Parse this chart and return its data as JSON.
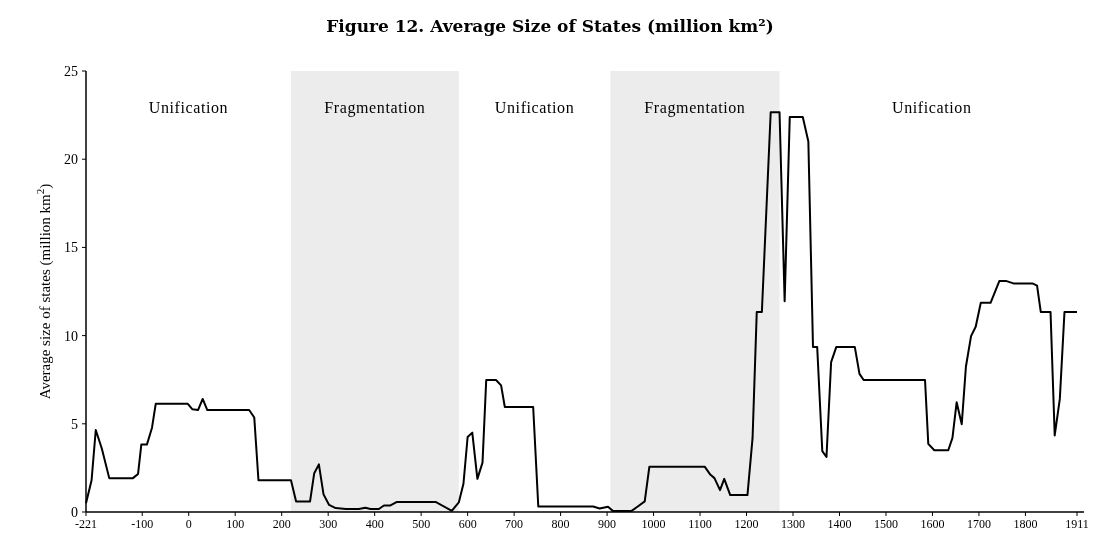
{
  "chart_data": {
    "type": "line",
    "title": "Figure 12. Average Size of States (million km²)",
    "ylabel": "Average size of states (million km$^{2}$)",
    "xlim": [
      -221,
      1926
    ],
    "xticks": [
      -221,
      -100,
      0,
      100,
      200,
      300,
      400,
      500,
      600,
      700,
      800,
      900,
      1000,
      1100,
      1200,
      1300,
      1400,
      1500,
      1600,
      1700,
      1800,
      1911
    ],
    "ylim": [
      0,
      25
    ],
    "yticks": [
      0,
      5,
      10,
      15,
      20,
      25
    ],
    "grid": false,
    "marker": "none",
    "line_style": "solid",
    "bands": [
      {
        "axis": "x",
        "from": 220,
        "to": 581,
        "label": "Fragmentation",
        "color": "#ececec"
      },
      {
        "axis": "x",
        "from": 907,
        "to": 1271,
        "label": "Fragmentation",
        "color": "#ececec"
      }
    ],
    "annotations": [
      "Unification",
      "Unification",
      "Unification"
    ],
    "series": [
      {
        "color": "#000000",
        "x": [
          -221,
          -209,
          -200,
          -187,
          -171,
          -120,
          -109,
          -102,
          -90,
          -79,
          -71,
          -2,
          8,
          20,
          30,
          40,
          130,
          141,
          150,
          220,
          231,
          261,
          270,
          280,
          290,
          302,
          316,
          338,
          366,
          380,
          391,
          409,
          420,
          434,
          448,
          531,
          566,
          581,
          591,
          600,
          610,
          621,
          632,
          640,
          661,
          672,
          680,
          741,
          752,
          870,
          884,
          902,
          913,
          952,
          966,
          981,
          991,
          1110,
          1122,
          1131,
          1143,
          1152,
          1165,
          1202,
          1213,
          1222,
          1233,
          1252,
          1271,
          1282,
          1293,
          1321,
          1333,
          1343,
          1352,
          1363,
          1372,
          1382,
          1393,
          1433,
          1443,
          1452,
          1584,
          1591,
          1604,
          1634,
          1643,
          1652,
          1663,
          1672,
          1683,
          1693,
          1704,
          1725,
          1744,
          1758,
          1774,
          1815,
          1825,
          1833,
          1854,
          1863,
          1874,
          1884,
          1911
        ],
        "values": [
          0.5,
          1.8,
          4.65,
          3.6,
          1.92,
          1.92,
          2.16,
          3.82,
          3.82,
          4.78,
          6.13,
          6.13,
          5.82,
          5.78,
          6.41,
          5.78,
          5.78,
          5.36,
          1.8,
          1.8,
          0.6,
          0.6,
          2.2,
          2.7,
          1.0,
          0.4,
          0.22,
          0.17,
          0.17,
          0.24,
          0.17,
          0.17,
          0.37,
          0.37,
          0.57,
          0.57,
          0.07,
          0.54,
          1.6,
          4.25,
          4.5,
          1.88,
          2.8,
          7.48,
          7.48,
          7.18,
          5.95,
          5.95,
          0.31,
          0.31,
          0.2,
          0.3,
          0.05,
          0.05,
          0.31,
          0.6,
          2.57,
          2.57,
          2.12,
          1.92,
          1.24,
          1.88,
          0.96,
          0.96,
          4.2,
          11.34,
          11.34,
          22.66,
          22.66,
          11.95,
          22.39,
          22.39,
          21.0,
          9.35,
          9.35,
          3.45,
          3.12,
          8.5,
          9.35,
          9.35,
          7.83,
          7.48,
          7.48,
          3.86,
          3.5,
          3.5,
          4.2,
          6.22,
          4.98,
          8.25,
          9.97,
          10.5,
          11.86,
          11.86,
          13.1,
          13.1,
          12.96,
          12.96,
          12.83,
          11.34,
          11.34,
          4.34,
          6.41,
          11.34,
          11.34
        ]
      }
    ]
  }
}
